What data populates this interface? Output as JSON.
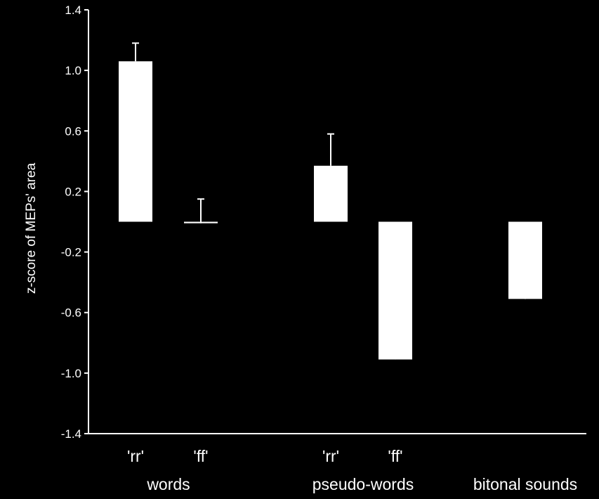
{
  "colors": {
    "background": "#000000",
    "foreground": "#ffffff"
  },
  "chart_data": {
    "type": "bar",
    "ylabel": "z-score of MEPs' area",
    "ylim": [
      -1.4,
      1.4
    ],
    "yticks": [
      "1.4",
      "1.0",
      "0.6",
      "0.2",
      "-0.2",
      "-0.6",
      "-1.0",
      "-1.4"
    ],
    "grid": false,
    "error_bars": "upper",
    "bars": [
      {
        "label": "'rr'",
        "group": "words",
        "value": 1.06,
        "error": 0.12
      },
      {
        "label": "'ff'",
        "group": "words",
        "value": -0.01,
        "error": 0.16
      },
      {
        "label": "'rr'",
        "group": "pseudo-words",
        "value": 0.37,
        "error": 0.21
      },
      {
        "label": "'ff'",
        "group": "pseudo-words",
        "value": -0.91,
        "error": 0.21
      },
      {
        "label": "",
        "group": "bitonal sounds",
        "value": -0.51,
        "error": 0.26
      }
    ],
    "groups": [
      "words",
      "pseudo-words",
      "bitonal sounds"
    ]
  }
}
